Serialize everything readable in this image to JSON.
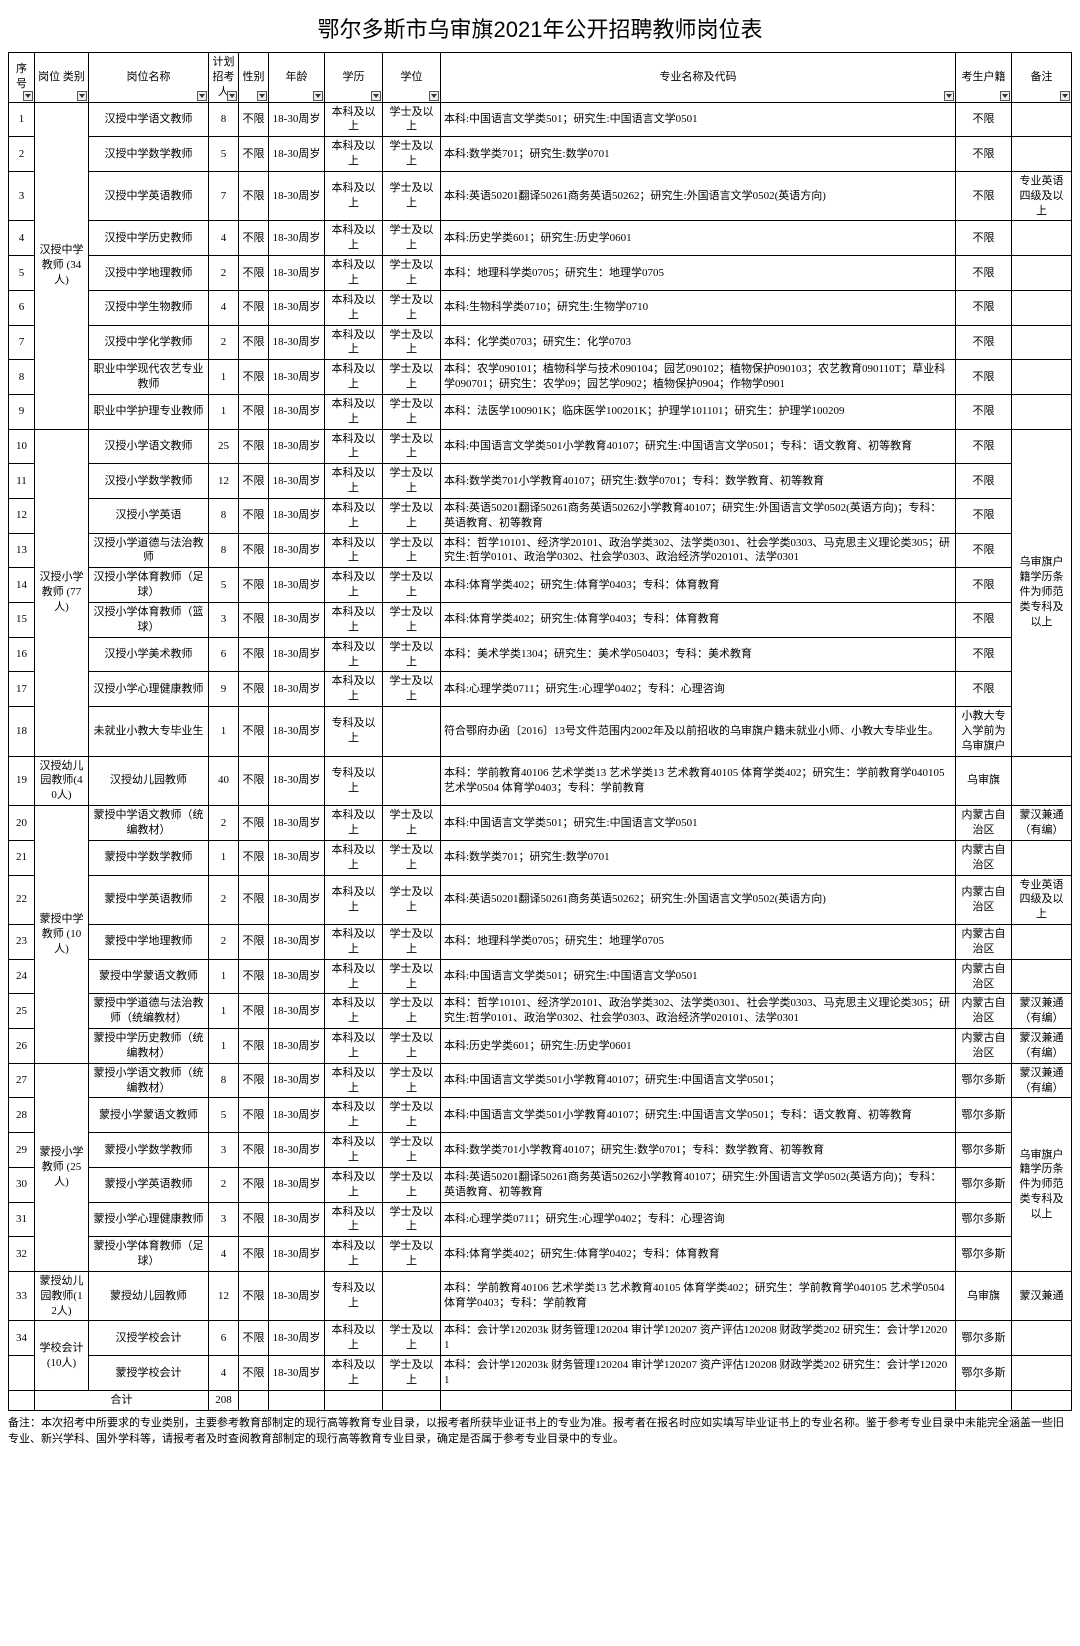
{
  "title": "鄂尔多斯市乌审旗2021年公开招聘教师岗位表",
  "headers": {
    "seq": "序号",
    "category": "岗位\n类别",
    "position": "岗位名称",
    "count": "计划\n招考\n人",
    "sex": "性别",
    "age": "年龄",
    "edu": "学历",
    "degree": "学位",
    "major": "专业名称及代码",
    "huji": "考生户籍",
    "note": "备注"
  },
  "total_label": "合计",
  "total_value": "208",
  "footnote": "备注：本次招考中所要求的专业类别，主要参考教育部制定的现行高等教育专业目录，以报考者所获毕业证书上的专业为准。报考者在报名时应如实填写毕业证书上的专业名称。鉴于参考专业目录中未能完全涵盖一些旧专业、新兴学科、国外学科等，请报考者及时查阅教育部制定的现行高等教育专业目录，确定是否属于参考专业目录中的专业。",
  "groups": [
    {
      "category": "汉授中学\n教师\n(34人)",
      "rows": [
        {
          "seq": "1",
          "pos": "汉授中学语文教师",
          "cnt": "8",
          "sex": "不限",
          "age": "18-30周岁",
          "edu": "本科及以上",
          "deg": "学士及以上",
          "major": "本科:中国语言文学类501；研究生:中国语言文学0501",
          "huji": "不限",
          "note": ""
        },
        {
          "seq": "2",
          "pos": "汉授中学数学教师",
          "cnt": "5",
          "sex": "不限",
          "age": "18-30周岁",
          "edu": "本科及以上",
          "deg": "学士及以上",
          "major": "本科:数学类701；研究生:数学0701",
          "huji": "不限",
          "note": ""
        },
        {
          "seq": "3",
          "pos": "汉授中学英语教师",
          "cnt": "7",
          "sex": "不限",
          "age": "18-30周岁",
          "edu": "本科及以上",
          "deg": "学士及以上",
          "major": "本科:英语50201翻译50261商务英语50262；研究生:外国语言文学0502(英语方向)",
          "huji": "不限",
          "note": "专业英语四级及以上"
        },
        {
          "seq": "4",
          "pos": "汉授中学历史教师",
          "cnt": "4",
          "sex": "不限",
          "age": "18-30周岁",
          "edu": "本科及以上",
          "deg": "学士及以上",
          "major": "本科:历史学类601；研究生:历史学0601",
          "huji": "不限",
          "note": ""
        },
        {
          "seq": "5",
          "pos": "汉授中学地理教师",
          "cnt": "2",
          "sex": "不限",
          "age": "18-30周岁",
          "edu": "本科及以上",
          "deg": "学士及以上",
          "major": "本科：地理科学类0705；研究生：地理学0705",
          "huji": "不限",
          "note": ""
        },
        {
          "seq": "6",
          "pos": "汉授中学生物教师",
          "cnt": "4",
          "sex": "不限",
          "age": "18-30周岁",
          "edu": "本科及以上",
          "deg": "学士及以上",
          "major": "本科:生物科学类0710；研究生:生物学0710",
          "huji": "不限",
          "note": ""
        },
        {
          "seq": "7",
          "pos": "汉授中学化学教师",
          "cnt": "2",
          "sex": "不限",
          "age": "18-30周岁",
          "edu": "本科及以上",
          "deg": "学士及以上",
          "major": "本科：化学类0703；研究生：化学0703",
          "huji": "不限",
          "note": ""
        },
        {
          "seq": "8",
          "pos": "职业中学现代农艺专业教师",
          "cnt": "1",
          "sex": "不限",
          "age": "18-30周岁",
          "edu": "本科及以上",
          "deg": "学士及以上",
          "major": "本科：农学090101；植物科学与技术090104；园艺090102；植物保护090103；农艺教育090110T；草业科学090701；研究生：农学09；园艺学0902；植物保护0904；作物学0901",
          "huji": "不限",
          "note": ""
        },
        {
          "seq": "9",
          "pos": "职业中学护理专业教师",
          "cnt": "1",
          "sex": "不限",
          "age": "18-30周岁",
          "edu": "本科及以上",
          "deg": "学士及以上",
          "major": "本科：法医学100901K；临床医学100201K；护理学101101；研究生：护理学100209",
          "huji": "不限",
          "note": ""
        }
      ]
    },
    {
      "category": "汉授小学\n教师\n(77人)",
      "note_span": "乌审旗户籍学历条件为师范类专科及以上",
      "rows": [
        {
          "seq": "10",
          "pos": "汉授小学语文教师",
          "cnt": "25",
          "sex": "不限",
          "age": "18-30周岁",
          "edu": "本科及以上",
          "deg": "学士及以上",
          "major": "本科:中国语言文学类501小学教育40107；研究生:中国语言文学0501；专科：语文教育、初等教育",
          "huji": "不限"
        },
        {
          "seq": "11",
          "pos": "汉授小学数学教师",
          "cnt": "12",
          "sex": "不限",
          "age": "18-30周岁",
          "edu": "本科及以上",
          "deg": "学士及以上",
          "major": "本科:数学类701小学教育40107；研究生:数学0701；专科：数学教育、初等教育",
          "huji": "不限"
        },
        {
          "seq": "12",
          "pos": "汉授小学英语",
          "cnt": "8",
          "sex": "不限",
          "age": "18-30周岁",
          "edu": "本科及以上",
          "deg": "学士及以上",
          "major": "本科:英语50201翻译50261商务英语50262小学教育40107；研究生:外国语言文学0502(英语方向)；专科：英语教育、初等教育",
          "huji": "不限"
        },
        {
          "seq": "13",
          "pos": "汉授小学道德与法治教师",
          "cnt": "8",
          "sex": "不限",
          "age": "18-30周岁",
          "edu": "本科及以上",
          "deg": "学士及以上",
          "major": "本科：哲学10101、经济学20101、政治学类302、法学类0301、社会学类0303、马克思主义理论类305；研究生:哲学0101、政治学0302、社会学0303、政治经济学020101、法学0301",
          "huji": "不限"
        },
        {
          "seq": "14",
          "pos": "汉授小学体育教师（足球）",
          "cnt": "5",
          "sex": "不限",
          "age": "18-30周岁",
          "edu": "本科及以上",
          "deg": "学士及以上",
          "major": "本科:体育学类402；研究生:体育学0403；专科：体育教育",
          "huji": "不限"
        },
        {
          "seq": "15",
          "pos": "汉授小学体育教师（篮球）",
          "cnt": "3",
          "sex": "不限",
          "age": "18-30周岁",
          "edu": "本科及以上",
          "deg": "学士及以上",
          "major": "本科:体育学类402；研究生:体育学0403；专科：体育教育",
          "huji": "不限"
        },
        {
          "seq": "16",
          "pos": "汉授小学美术教师",
          "cnt": "6",
          "sex": "不限",
          "age": "18-30周岁",
          "edu": "本科及以上",
          "deg": "学士及以上",
          "major": "本科：美术学类1304；研究生：美术学050403；专科：美术教育",
          "huji": "不限"
        },
        {
          "seq": "17",
          "pos": "汉授小学心理健康教师",
          "cnt": "9",
          "sex": "不限",
          "age": "18-30周岁",
          "edu": "本科及以上",
          "deg": "学士及以上",
          "major": "本科:心理学类0711；研究生:心理学0402；专科：心理咨询",
          "huji": "不限"
        },
        {
          "seq": "18",
          "pos": "未就业小教大专毕业生",
          "cnt": "1",
          "sex": "不限",
          "age": "18-30周岁",
          "edu": "专科及以上",
          "deg": "",
          "major": "符合鄂府办函〔2016〕13号文件范围内2002年及以前招收的乌审旗户籍未就业小师、小教大专毕业生。",
          "huji": "小教大专入学前为乌审旗户"
        }
      ]
    },
    {
      "category": "汉授幼儿园教师(40人)",
      "rows": [
        {
          "seq": "19",
          "pos": "汉授幼儿园教师",
          "cnt": "40",
          "sex": "不限",
          "age": "18-30周岁",
          "edu": "专科及以上",
          "deg": "",
          "major": "本科：学前教育40106 艺术学类13 艺术学类13 艺术教育40105 体育学类402；研究生：学前教育学040105 艺术学0504 体育学0403；专科：学前教育",
          "huji": "乌审旗",
          "note": ""
        }
      ]
    },
    {
      "category": "蒙授中学\n教师\n(10人)",
      "rows": [
        {
          "seq": "20",
          "pos": "蒙授中学语文教师（统编教材）",
          "cnt": "2",
          "sex": "不限",
          "age": "18-30周岁",
          "edu": "本科及以上",
          "deg": "学士及以上",
          "major": "本科:中国语言文学类501；研究生:中国语言文学0501",
          "huji": "内蒙古自治区",
          "note": "蒙汉兼通（有编）"
        },
        {
          "seq": "21",
          "pos": "蒙授中学数学教师",
          "cnt": "1",
          "sex": "不限",
          "age": "18-30周岁",
          "edu": "本科及以上",
          "deg": "学士及以上",
          "major": "本科:数学类701；研究生:数学0701",
          "huji": "内蒙古自治区",
          "note": ""
        },
        {
          "seq": "22",
          "pos": "蒙授中学英语教师",
          "cnt": "2",
          "sex": "不限",
          "age": "18-30周岁",
          "edu": "本科及以上",
          "deg": "学士及以上",
          "major": "本科:英语50201翻译50261商务英语50262；研究生:外国语言文学0502(英语方向)",
          "huji": "内蒙古自治区",
          "note": "专业英语四级及以上"
        },
        {
          "seq": "23",
          "pos": "蒙授中学地理教师",
          "cnt": "2",
          "sex": "不限",
          "age": "18-30周岁",
          "edu": "本科及以上",
          "deg": "学士及以上",
          "major": "本科：地理科学类0705；研究生：地理学0705",
          "huji": "内蒙古自治区",
          "note": ""
        },
        {
          "seq": "24",
          "pos": "蒙授中学蒙语文教师",
          "cnt": "1",
          "sex": "不限",
          "age": "18-30周岁",
          "edu": "本科及以上",
          "deg": "学士及以上",
          "major": "本科:中国语言文学类501；研究生:中国语言文学0501",
          "huji": "内蒙古自治区",
          "note": ""
        },
        {
          "seq": "25",
          "pos": "蒙授中学道德与法治教师（统编教材）",
          "cnt": "1",
          "sex": "不限",
          "age": "18-30周岁",
          "edu": "本科及以上",
          "deg": "学士及以上",
          "major": "本科：哲学10101、经济学20101、政治学类302、法学类0301、社会学类0303、马克思主义理论类305；研究生:哲学0101、政治学0302、社会学0303、政治经济学020101、法学0301",
          "huji": "内蒙古自治区",
          "note": "蒙汉兼通（有编）"
        },
        {
          "seq": "26",
          "pos": "蒙授中学历史教师（统编教材）",
          "cnt": "1",
          "sex": "不限",
          "age": "18-30周岁",
          "edu": "本科及以上",
          "deg": "学士及以上",
          "major": "本科:历史学类601；研究生:历史学0601",
          "huji": "内蒙古自治区",
          "note": "蒙汉兼通（有编）"
        }
      ]
    },
    {
      "category": "蒙授小学\n教师\n(25人)",
      "note_span": "乌审旗户籍学历条件为师范类专科及以上",
      "rows": [
        {
          "seq": "27",
          "pos": "蒙授小学语文教师（统编教材）",
          "cnt": "8",
          "sex": "不限",
          "age": "18-30周岁",
          "edu": "本科及以上",
          "deg": "学士及以上",
          "major": "本科:中国语言文学类501小学教育40107；研究生:中国语言文学0501；",
          "huji": "鄂尔多斯",
          "note_override": "蒙汉兼通（有编）"
        },
        {
          "seq": "28",
          "pos": "蒙授小学蒙语文教师",
          "cnt": "5",
          "sex": "不限",
          "age": "18-30周岁",
          "edu": "本科及以上",
          "deg": "学士及以上",
          "major": "本科:中国语言文学类501小学教育40107；研究生:中国语言文学0501；专科：语文教育、初等教育",
          "huji": "鄂尔多斯"
        },
        {
          "seq": "29",
          "pos": "蒙授小学数学教师",
          "cnt": "3",
          "sex": "不限",
          "age": "18-30周岁",
          "edu": "本科及以上",
          "deg": "学士及以上",
          "major": "本科:数学类701小学教育40107；研究生:数学0701；专科：数学教育、初等教育",
          "huji": "鄂尔多斯"
        },
        {
          "seq": "30",
          "pos": "蒙授小学英语教师",
          "cnt": "2",
          "sex": "不限",
          "age": "18-30周岁",
          "edu": "本科及以上",
          "deg": "学士及以上",
          "major": "本科:英语50201翻译50261商务英语50262小学教育40107；研究生:外国语言文学0502(英语方向)；专科：英语教育、初等教育",
          "huji": "鄂尔多斯"
        },
        {
          "seq": "31",
          "pos": "蒙授小学心理健康教师",
          "cnt": "3",
          "sex": "不限",
          "age": "18-30周岁",
          "edu": "本科及以上",
          "deg": "学士及以上",
          "major": "本科:心理学类0711；研究生:心理学0402；专科：心理咨询",
          "huji": "鄂尔多斯"
        },
        {
          "seq": "32",
          "pos": "蒙授小学体育教师（足球）",
          "cnt": "4",
          "sex": "不限",
          "age": "18-30周岁",
          "edu": "本科及以上",
          "deg": "学士及以上",
          "major": "本科:体育学类402；研究生:体育学0402；专科：体育教育",
          "huji": "鄂尔多斯"
        }
      ]
    },
    {
      "category": "蒙授幼儿园教师(12人)",
      "rows": [
        {
          "seq": "33",
          "pos": "蒙授幼儿园教师",
          "cnt": "12",
          "sex": "不限",
          "age": "18-30周岁",
          "edu": "专科及以上",
          "deg": "",
          "major": "本科：学前教育40106 艺术学类13 艺术教育40105 体育学类402；研究生：学前教育学040105 艺术学0504 体育学0403；专科：学前教育",
          "huji": "乌审旗",
          "note": "蒙汉兼通"
        }
      ]
    },
    {
      "category": "学校会计\n(10人)",
      "rows": [
        {
          "seq": "34",
          "pos": "汉授学校会计",
          "cnt": "6",
          "sex": "不限",
          "age": "18-30周岁",
          "edu": "本科及以上",
          "deg": "学士及以上",
          "major": "本科：会计学120203k 财务管理120204 审计学120207 资产评估120208 财政学类202 研究生：会计学120201",
          "huji": "鄂尔多斯",
          "note": ""
        },
        {
          "seq": "",
          "pos": "蒙授学校会计",
          "cnt": "4",
          "sex": "不限",
          "age": "18-30周岁",
          "edu": "本科及以上",
          "deg": "学士及以上",
          "major": "本科：会计学120203k 财务管理120204 审计学120207 资产评估120208 财政学类202 研究生：会计学120201",
          "huji": "鄂尔多斯",
          "note": ""
        }
      ]
    }
  ]
}
